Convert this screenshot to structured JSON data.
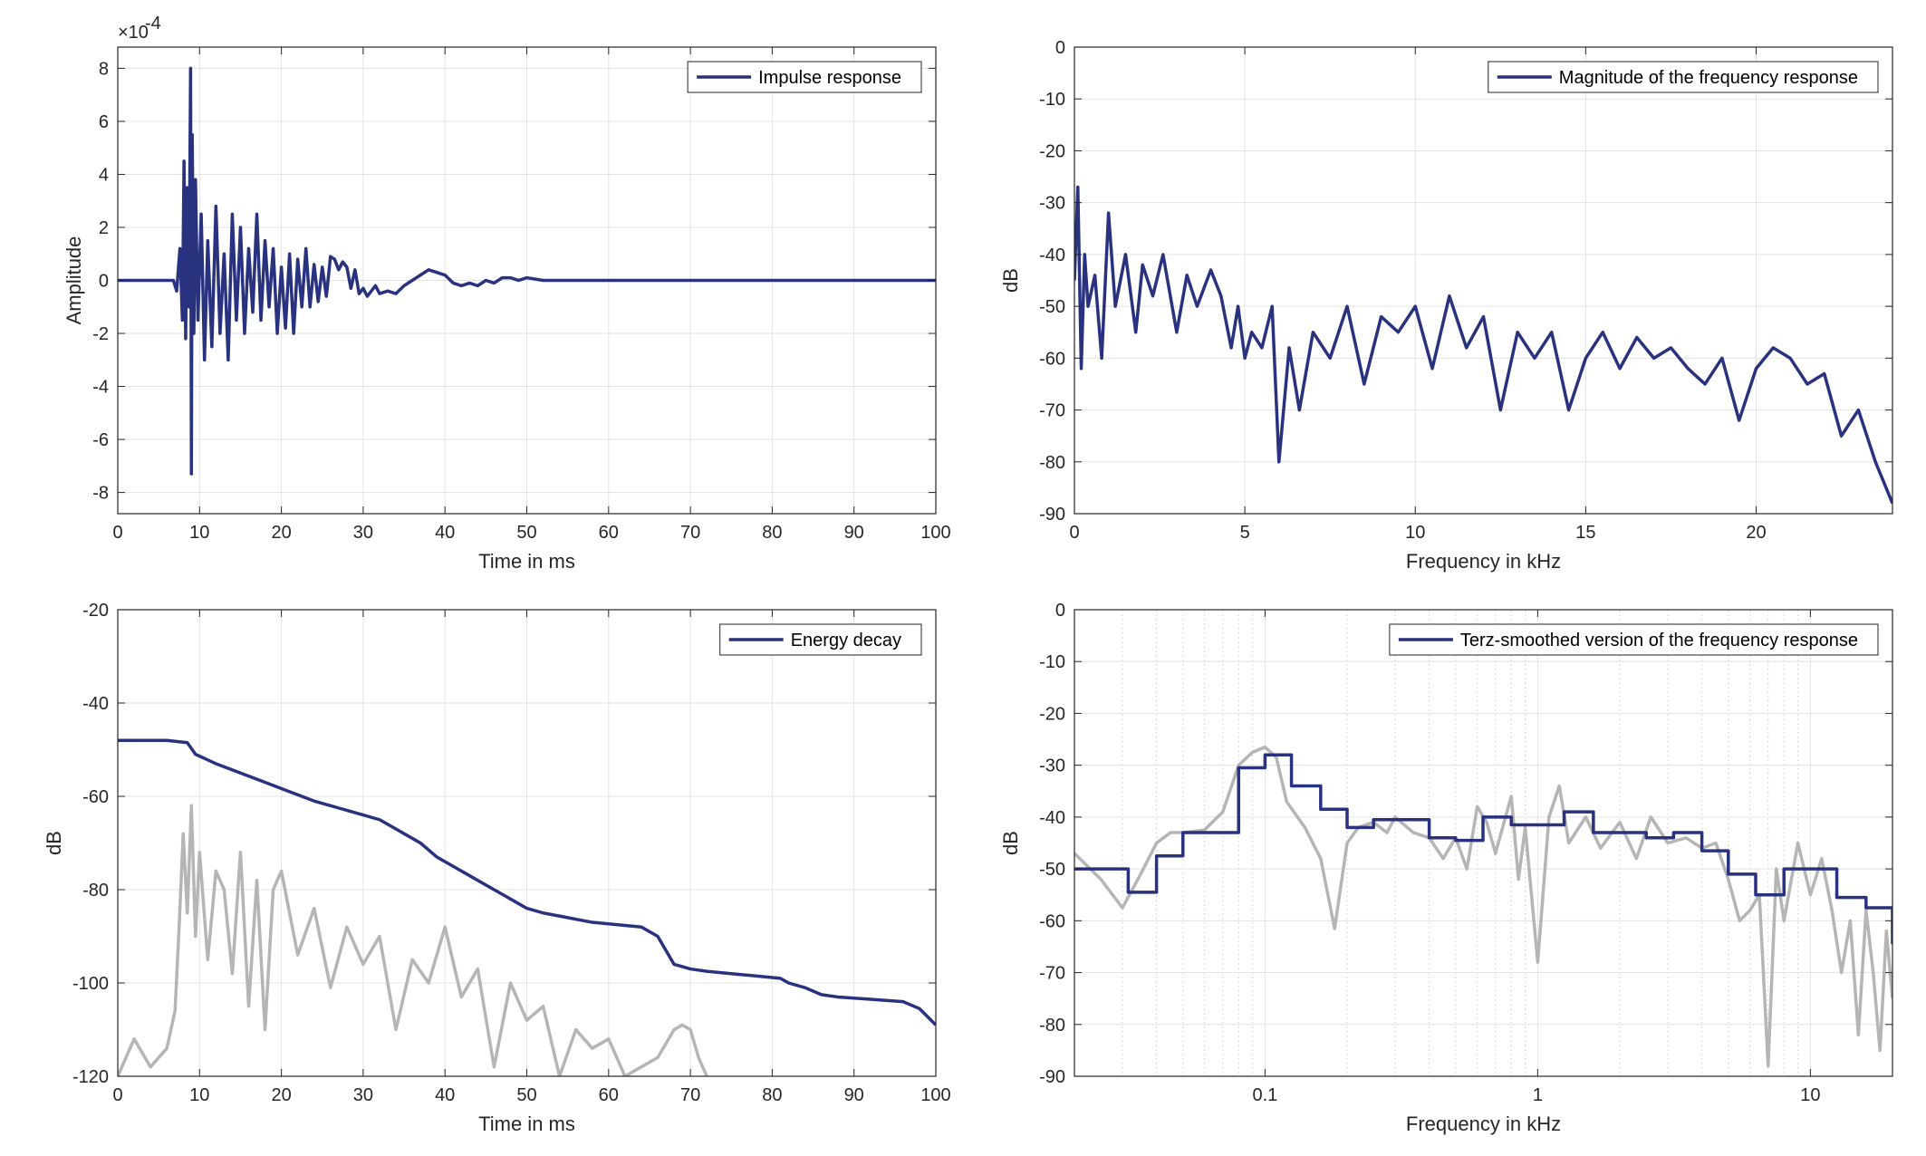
{
  "chart_data": [
    {
      "type": "line",
      "id": "impulse",
      "xlabel": "Time in ms",
      "ylabel": "Amplitude",
      "exponent_label": "×10",
      "exponent_value": "-4",
      "xlim": [
        0,
        100
      ],
      "ylim": [
        -8.8,
        8.8
      ],
      "xticks": [
        0,
        10,
        20,
        30,
        40,
        50,
        60,
        70,
        80,
        90,
        100
      ],
      "yticks": [
        -8,
        -6,
        -4,
        -2,
        0,
        2,
        4,
        6,
        8
      ],
      "grid": true,
      "legend": {
        "position": "top-right",
        "entries": [
          "Impulse response"
        ]
      },
      "series": [
        {
          "name": "Impulse response",
          "color": "#28327f",
          "x": [
            0,
            6.8,
            7.2,
            7.6,
            7.9,
            8.1,
            8.3,
            8.5,
            8.7,
            8.9,
            9.0,
            9.1,
            9.3,
            9.5,
            9.8,
            10.2,
            10.6,
            11.0,
            11.5,
            12.0,
            12.5,
            13.0,
            13.5,
            14.0,
            14.5,
            15.0,
            15.5,
            16.0,
            16.5,
            17.0,
            17.5,
            18.0,
            18.5,
            19.0,
            19.5,
            20.0,
            20.5,
            21.0,
            21.5,
            22.0,
            22.5,
            23.0,
            23.5,
            24.0,
            24.5,
            25.0,
            25.5,
            26.0,
            26.5,
            27.0,
            27.5,
            28.0,
            28.5,
            29.0,
            29.5,
            30.0,
            30.5,
            31.0,
            31.5,
            32.0,
            33.0,
            34.0,
            35.0,
            36.0,
            37.0,
            38.0,
            39.0,
            40.0,
            41.0,
            42.0,
            43.0,
            44.0,
            45.0,
            46.0,
            47.0,
            48.0,
            49.0,
            50.0,
            52.0,
            55.0,
            60.0,
            70.0,
            80.0,
            90.0,
            100.0
          ],
          "y": [
            0,
            0,
            -0.4,
            1.2,
            -1.5,
            4.5,
            -2.2,
            3.5,
            -1.0,
            8.0,
            -7.3,
            5.5,
            -2.0,
            3.8,
            -1.5,
            2.5,
            -3.0,
            1.5,
            -2.5,
            2.8,
            -2.0,
            1.0,
            -3.0,
            2.5,
            -1.5,
            2.0,
            -2.0,
            1.2,
            -1.2,
            2.5,
            -1.5,
            1.5,
            -1.0,
            1.2,
            -2.0,
            0.5,
            -1.8,
            1.0,
            -2.0,
            0.8,
            -1.0,
            1.2,
            -1.0,
            0.6,
            -0.8,
            0.5,
            -0.6,
            0.9,
            0.8,
            0.4,
            0.7,
            0.5,
            -0.3,
            0.4,
            -0.5,
            -0.3,
            -0.6,
            -0.4,
            -0.2,
            -0.5,
            -0.4,
            -0.5,
            -0.2,
            0.0,
            0.2,
            0.4,
            0.3,
            0.2,
            -0.1,
            -0.2,
            -0.1,
            -0.2,
            0.0,
            -0.1,
            0.1,
            0.1,
            0.0,
            0.1,
            0.0,
            0.0,
            0.0,
            0.0,
            0.0,
            0.0,
            0.0
          ]
        }
      ]
    },
    {
      "type": "line",
      "id": "magnitude",
      "xlabel": "Frequency in kHz",
      "ylabel": "dB",
      "xlim": [
        0,
        24
      ],
      "ylim": [
        -90,
        0
      ],
      "xticks": [
        0,
        5,
        10,
        15,
        20
      ],
      "yticks": [
        0,
        -10,
        -20,
        -30,
        -40,
        -50,
        -60,
        -70,
        -80,
        -90
      ],
      "grid": true,
      "legend": {
        "position": "top-right",
        "entries": [
          "Magnitude of the frequency response"
        ]
      },
      "series": [
        {
          "name": "Magnitude of the frequency response",
          "color": "#28327f",
          "x": [
            0,
            0.1,
            0.2,
            0.3,
            0.4,
            0.6,
            0.8,
            1.0,
            1.2,
            1.5,
            1.8,
            2.0,
            2.3,
            2.6,
            3.0,
            3.3,
            3.6,
            4.0,
            4.3,
            4.6,
            4.8,
            5.0,
            5.2,
            5.5,
            5.8,
            6.0,
            6.3,
            6.6,
            7.0,
            7.5,
            8.0,
            8.5,
            9.0,
            9.5,
            10.0,
            10.5,
            11.0,
            11.5,
            12.0,
            12.5,
            13.0,
            13.5,
            14.0,
            14.5,
            15.0,
            15.5,
            16.0,
            16.5,
            17.0,
            17.5,
            18.0,
            18.5,
            19.0,
            19.5,
            20.0,
            20.5,
            21.0,
            21.5,
            22.0,
            22.5,
            23.0,
            23.5,
            24.0
          ],
          "y": [
            -45,
            -27,
            -62,
            -40,
            -50,
            -44,
            -60,
            -32,
            -50,
            -40,
            -55,
            -42,
            -48,
            -40,
            -55,
            -44,
            -50,
            -43,
            -48,
            -58,
            -50,
            -60,
            -55,
            -58,
            -50,
            -80,
            -58,
            -70,
            -55,
            -60,
            -50,
            -65,
            -52,
            -55,
            -50,
            -62,
            -48,
            -58,
            -52,
            -70,
            -55,
            -60,
            -55,
            -70,
            -60,
            -55,
            -62,
            -56,
            -60,
            -58,
            -62,
            -65,
            -60,
            -72,
            -62,
            -58,
            -60,
            -65,
            -63,
            -75,
            -70,
            -80,
            -88
          ]
        }
      ]
    },
    {
      "type": "line",
      "id": "energy",
      "xlabel": "Time in ms",
      "ylabel": "dB",
      "xlim": [
        0,
        100
      ],
      "ylim": [
        -120,
        -20
      ],
      "xticks": [
        0,
        10,
        20,
        30,
        40,
        50,
        60,
        70,
        80,
        90,
        100
      ],
      "yticks": [
        -20,
        -40,
        -60,
        -80,
        -100,
        -120
      ],
      "grid": true,
      "legend": {
        "position": "top-right",
        "entries": [
          "Energy decay"
        ]
      },
      "series": [
        {
          "name": "Energy decay",
          "color": "#28327f",
          "x": [
            0,
            6,
            8.5,
            9.5,
            12,
            15,
            18,
            21,
            24,
            27,
            30,
            32,
            33,
            35,
            37,
            39,
            41,
            43,
            45,
            47,
            49,
            50,
            52,
            55,
            58,
            61,
            64,
            66,
            67,
            68,
            69,
            70,
            72,
            75,
            78,
            81,
            82,
            84,
            86,
            88,
            92,
            96,
            98,
            100
          ],
          "y": [
            -48,
            -48,
            -48.5,
            -51,
            -53,
            -55,
            -57,
            -59,
            -61,
            -62.5,
            -64,
            -65,
            -66,
            -68,
            -70,
            -73,
            -75,
            -77,
            -79,
            -81,
            -83,
            -84,
            -85,
            -86,
            -87,
            -87.5,
            -88,
            -90,
            -93,
            -96,
            -96.5,
            -97,
            -97.5,
            -98,
            -98.5,
            -99,
            -100,
            -101,
            -102.5,
            -103,
            -103.5,
            -104,
            -105.5,
            -109
          ]
        },
        {
          "color": "#b5b5b5",
          "x": [
            0,
            2,
            4,
            6,
            7,
            7.5,
            8,
            8.5,
            9,
            9.5,
            10,
            11,
            12,
            13,
            14,
            15,
            16,
            17,
            18,
            19,
            20,
            22,
            24,
            26,
            28,
            30,
            32,
            34,
            36,
            38,
            40,
            42,
            44,
            46,
            48,
            50,
            52,
            54,
            56,
            58,
            60,
            62,
            64,
            66,
            68,
            69,
            70,
            71,
            72
          ],
          "y": [
            -120,
            -112,
            -118,
            -114,
            -106,
            -88,
            -68,
            -85,
            -62,
            -90,
            -72,
            -95,
            -76,
            -80,
            -98,
            -72,
            -105,
            -78,
            -110,
            -80,
            -76,
            -94,
            -84,
            -101,
            -88,
            -96,
            -90,
            -110,
            -95,
            -100,
            -88,
            -103,
            -97,
            -118,
            -100,
            -108,
            -105,
            -120,
            -110,
            -114,
            -112,
            -120,
            -118,
            -116,
            -110,
            -109,
            -110,
            -116,
            -120
          ]
        }
      ]
    },
    {
      "type": "line",
      "id": "terz",
      "xlabel": "Frequency in kHz",
      "ylabel": "dB",
      "xscale": "log",
      "xlim": [
        0.02,
        20
      ],
      "ylim": [
        -90,
        0
      ],
      "xticks": [
        0.1,
        1,
        10
      ],
      "xticklabels": [
        "0.1",
        "1",
        "10"
      ],
      "yticks": [
        0,
        -10,
        -20,
        -30,
        -40,
        -50,
        -60,
        -70,
        -80,
        -90
      ],
      "grid": true,
      "legend": {
        "position": "top-right",
        "entries": [
          "Terz-smoothed version of the frequency response"
        ]
      },
      "series": [
        {
          "name": "Terz-smoothed version of the frequency response",
          "color": "#28327f",
          "step": true,
          "x": [
            0.02,
            0.025,
            0.0315,
            0.04,
            0.05,
            0.063,
            0.08,
            0.1,
            0.125,
            0.16,
            0.2,
            0.25,
            0.315,
            0.4,
            0.5,
            0.63,
            0.8,
            1.0,
            1.25,
            1.6,
            2.0,
            2.5,
            3.15,
            4.0,
            5.0,
            6.3,
            8.0,
            10.0,
            12.5,
            16.0,
            20.0
          ],
          "y": [
            -50,
            -50,
            -54.5,
            -47.5,
            -43,
            -43,
            -30.5,
            -28,
            -34,
            -38.5,
            -42,
            -40.5,
            -40.5,
            -44,
            -44.5,
            -40,
            -41.5,
            -41.5,
            -39,
            -43,
            -43,
            -44,
            -43,
            -46.5,
            -51,
            -55,
            -50,
            -50,
            -55.5,
            -57.5,
            -64.5
          ]
        },
        {
          "color": "#b5b5b5",
          "x": [
            0.02,
            0.025,
            0.03,
            0.035,
            0.04,
            0.045,
            0.05,
            0.06,
            0.07,
            0.08,
            0.09,
            0.1,
            0.11,
            0.12,
            0.14,
            0.16,
            0.18,
            0.2,
            0.22,
            0.25,
            0.28,
            0.3,
            0.35,
            0.4,
            0.45,
            0.5,
            0.55,
            0.6,
            0.65,
            0.7,
            0.8,
            0.85,
            0.9,
            1.0,
            1.1,
            1.2,
            1.3,
            1.5,
            1.7,
            2.0,
            2.3,
            2.6,
            3.0,
            3.5,
            4.0,
            4.5,
            5.0,
            5.5,
            6.0,
            6.5,
            7.0,
            7.5,
            8.0,
            9.0,
            10.0,
            11.0,
            12.0,
            13.0,
            14.0,
            15.0,
            16.0,
            17.0,
            18.0,
            19.0,
            20.0
          ],
          "y": [
            -47,
            -52,
            -57.5,
            -51,
            -45,
            -43,
            -43,
            -42.5,
            -39,
            -30,
            -27.5,
            -26.5,
            -28.5,
            -37,
            -42,
            -48,
            -61.5,
            -45,
            -42,
            -41,
            -43,
            -40,
            -43,
            -44,
            -48,
            -44,
            -50,
            -38,
            -41,
            -47,
            -36,
            -52,
            -42,
            -68,
            -40,
            -34,
            -45,
            -40,
            -46,
            -41,
            -48,
            -40,
            -45,
            -44,
            -46,
            -45,
            -52,
            -60,
            -58,
            -55,
            -88,
            -50,
            -60,
            -45,
            -55,
            -48,
            -58,
            -70,
            -60,
            -82,
            -58,
            -70,
            -85,
            -62,
            -75
          ]
        }
      ]
    }
  ]
}
